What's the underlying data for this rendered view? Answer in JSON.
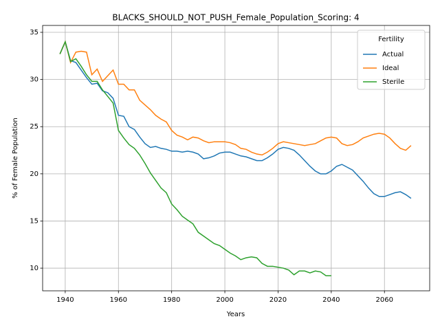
{
  "chart_data": {
    "type": "line",
    "title": "BLACKS_SHOULD_NOT_PUSH_Female_Population_Scoring: 4",
    "xlabel": "Years",
    "ylabel": "% of Female Population",
    "legend_title": "Fertility",
    "legend_loc": "upper right",
    "grid": true,
    "xlim": [
      1931.5,
      2077
    ],
    "ylim": [
      7.6,
      35.73
    ],
    "xticks": [
      1940,
      1960,
      1980,
      2000,
      2020,
      2040,
      2060
    ],
    "yticks": [
      10,
      15,
      20,
      25,
      30,
      35
    ],
    "x": [
      1938,
      1940,
      1942,
      1944,
      1946,
      1948,
      1950,
      1952,
      1954,
      1956,
      1958,
      1960,
      1962,
      1964,
      1966,
      1968,
      1970,
      1972,
      1974,
      1976,
      1978,
      1980,
      1982,
      1984,
      1986,
      1988,
      1990,
      1992,
      1994,
      1996,
      1998,
      2000,
      2002,
      2004,
      2006,
      2008,
      2010,
      2012,
      2014,
      2016,
      2018,
      2020,
      2022,
      2024,
      2026,
      2028,
      2030,
      2032,
      2034,
      2036,
      2038,
      2040,
      2042,
      2044,
      2046,
      2048,
      2050,
      2052,
      2054,
      2056,
      2058,
      2060,
      2062,
      2064,
      2066,
      2068,
      2070
    ],
    "series": [
      {
        "name": "Actual",
        "color": "#1f77b4",
        "values": [
          32.7,
          34.0,
          32.0,
          31.8,
          31.0,
          30.2,
          29.5,
          29.6,
          28.8,
          28.6,
          28.0,
          26.2,
          26.1,
          25.0,
          24.7,
          23.9,
          23.2,
          22.8,
          22.9,
          22.7,
          22.6,
          22.4,
          22.4,
          22.3,
          22.4,
          22.3,
          22.1,
          21.6,
          21.7,
          21.9,
          22.2,
          22.3,
          22.3,
          22.1,
          21.9,
          21.8,
          21.6,
          21.4,
          21.4,
          21.7,
          22.1,
          22.6,
          22.8,
          22.7,
          22.5,
          22.0,
          21.4,
          20.8,
          20.3,
          20.0,
          20.0,
          20.3,
          20.8,
          21.0,
          20.7,
          20.4,
          19.8,
          19.2,
          18.5,
          17.9,
          17.6,
          17.6,
          17.8,
          18.0,
          18.1,
          17.8,
          17.4
        ]
      },
      {
        "name": "Ideal",
        "color": "#ff7f0e",
        "values": [
          32.7,
          34.0,
          31.8,
          32.9,
          33.0,
          32.9,
          30.5,
          31.1,
          29.8,
          30.4,
          31.0,
          29.5,
          29.5,
          28.9,
          28.9,
          27.8,
          27.3,
          26.8,
          26.2,
          25.8,
          25.5,
          24.6,
          24.1,
          23.9,
          23.6,
          23.9,
          23.8,
          23.5,
          23.3,
          23.4,
          23.4,
          23.4,
          23.3,
          23.1,
          22.7,
          22.6,
          22.3,
          22.1,
          22.0,
          22.3,
          22.7,
          23.2,
          23.4,
          23.3,
          23.2,
          23.1,
          23.0,
          23.1,
          23.2,
          23.5,
          23.8,
          23.9,
          23.8,
          23.2,
          23.0,
          23.1,
          23.4,
          23.8,
          24.0,
          24.2,
          24.3,
          24.2,
          23.8,
          23.2,
          22.7,
          22.5,
          23.0
        ]
      },
      {
        "name": "Sterile",
        "color": "#2ca02c",
        "values": [
          32.7,
          34.0,
          31.9,
          32.2,
          31.4,
          30.5,
          29.8,
          29.8,
          28.9,
          28.2,
          27.5,
          24.6,
          23.8,
          23.1,
          22.7,
          22.0,
          21.1,
          20.1,
          19.3,
          18.5,
          18.0,
          16.8,
          16.2,
          15.5,
          15.1,
          14.7,
          13.8,
          13.4,
          13.0,
          12.6,
          12.4,
          12.0,
          11.6,
          11.3,
          10.9,
          11.1,
          11.2,
          11.1,
          10.5,
          10.2,
          10.2,
          10.1,
          10.0,
          9.8,
          9.3,
          9.7,
          9.7,
          9.5,
          9.7,
          9.6,
          9.2,
          9.2,
          null,
          null,
          null,
          null,
          null,
          null,
          null,
          null,
          null,
          null,
          null,
          null,
          null,
          null,
          null
        ]
      }
    ]
  }
}
